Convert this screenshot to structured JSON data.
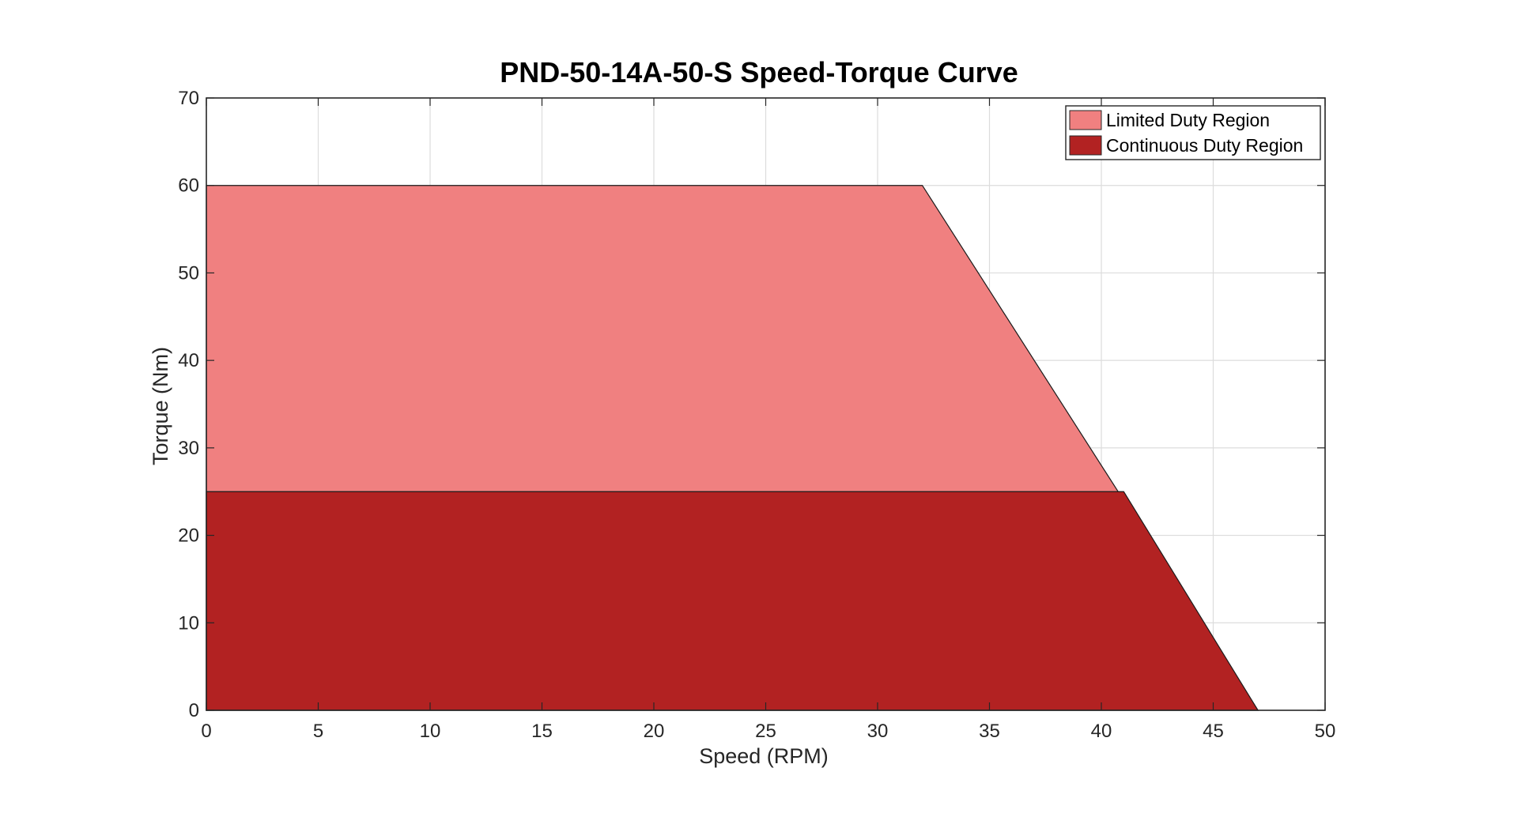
{
  "chart_data": {
    "type": "area",
    "title": "PND-50-14A-50-S Speed-Torque Curve",
    "xlabel": "Speed (RPM)",
    "ylabel": "Torque (Nm)",
    "xlim": [
      0,
      50
    ],
    "ylim": [
      0,
      70
    ],
    "xticks": [
      0,
      5,
      10,
      15,
      20,
      25,
      30,
      35,
      40,
      45,
      50
    ],
    "yticks": [
      0,
      10,
      20,
      30,
      40,
      50,
      60,
      70
    ],
    "grid": true,
    "legend_position": "top-right",
    "series": [
      {
        "name": "Limited Duty Region",
        "color": "#F08080",
        "points": [
          [
            0,
            0
          ],
          [
            0,
            60
          ],
          [
            32,
            60
          ],
          [
            47,
            0
          ]
        ]
      },
      {
        "name": "Continuous Duty Region",
        "color": "#B22222",
        "points": [
          [
            0,
            0
          ],
          [
            0,
            25
          ],
          [
            41,
            25
          ],
          [
            47,
            0
          ]
        ]
      }
    ]
  }
}
